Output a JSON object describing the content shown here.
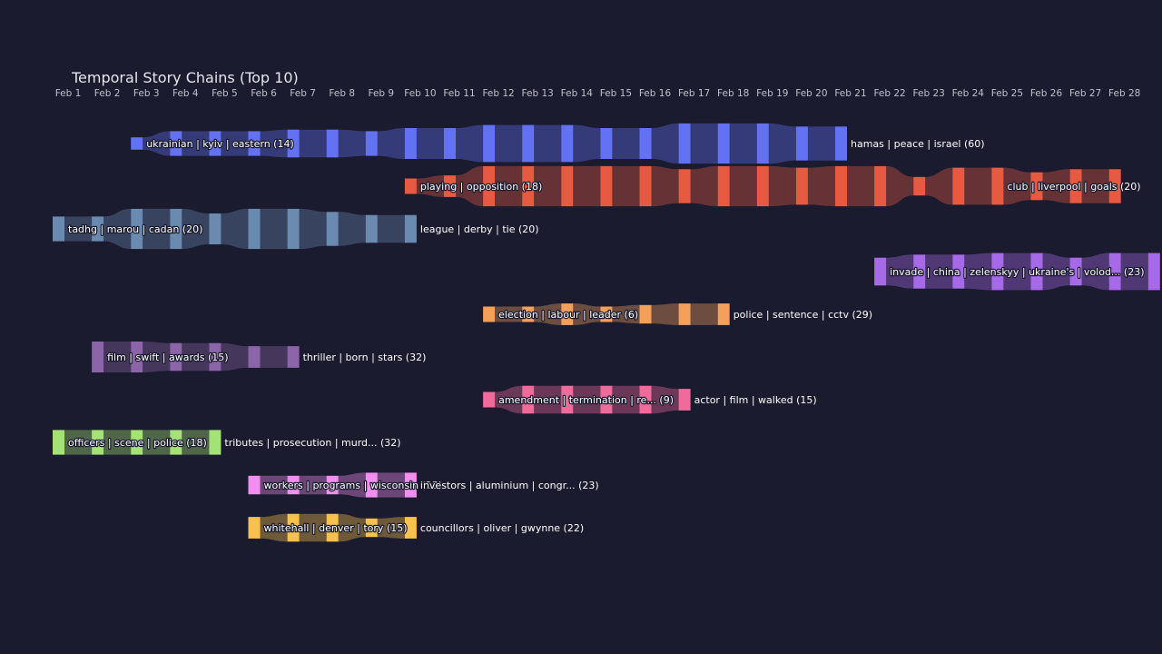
{
  "chart_data": {
    "type": "sankey-timeline",
    "title": "Temporal Story Chains (Top 10)",
    "x_ticks": [
      "Feb 1",
      "Feb 2",
      "Feb 3",
      "Feb 4",
      "Feb 5",
      "Feb 6",
      "Feb 7",
      "Feb 8",
      "Feb 9",
      "Feb 10",
      "Feb 11",
      "Feb 12",
      "Feb 13",
      "Feb 14",
      "Feb 15",
      "Feb 16",
      "Feb 17",
      "Feb 18",
      "Feb 19",
      "Feb 20",
      "Feb 21",
      "Feb 22",
      "Feb 23",
      "Feb 24",
      "Feb 25",
      "Feb 26",
      "Feb 27",
      "Feb 28"
    ],
    "legend": "none",
    "grid": false,
    "chains": [
      {
        "color": "#6272f2",
        "nodes": [
          [
            3,
            4
          ],
          [
            4,
            8
          ],
          [
            5,
            8
          ],
          [
            6,
            8
          ],
          [
            7,
            9
          ],
          [
            8,
            9
          ],
          [
            9,
            8
          ],
          [
            10,
            10
          ],
          [
            11,
            10
          ],
          [
            12,
            12
          ],
          [
            13,
            12
          ],
          [
            14,
            12
          ],
          [
            15,
            10
          ],
          [
            16,
            10
          ],
          [
            17,
            13
          ],
          [
            18,
            13
          ],
          [
            19,
            13
          ],
          [
            20,
            11
          ],
          [
            21,
            11
          ]
        ],
        "labels": [
          {
            "day": 3,
            "text": "ukrainian | kyiv | eastern (14)"
          },
          {
            "day": 21,
            "text": "hamas | peace | israel (60)"
          }
        ]
      },
      {
        "color": "#e65a42",
        "nodes": [
          [
            10,
            5
          ],
          [
            11,
            7
          ],
          [
            12,
            13
          ],
          [
            13,
            13
          ],
          [
            14,
            13
          ],
          [
            15,
            13
          ],
          [
            16,
            13
          ],
          [
            17,
            11
          ],
          [
            18,
            13
          ],
          [
            19,
            13
          ],
          [
            20,
            12
          ],
          [
            21,
            13
          ],
          [
            22,
            13
          ],
          [
            23,
            6
          ],
          [
            24,
            12
          ],
          [
            25,
            12
          ],
          [
            26,
            9
          ],
          [
            27,
            11
          ],
          [
            28,
            11
          ]
        ],
        "labels": [
          {
            "day": 10,
            "text": "playing | opposition (18)"
          },
          {
            "day": 25,
            "text": "club | liverpool | goals (20)"
          }
        ]
      },
      {
        "color": "#6a8ab0",
        "nodes": [
          [
            1,
            8
          ],
          [
            2,
            8
          ],
          [
            3,
            13
          ],
          [
            4,
            13
          ],
          [
            5,
            10
          ],
          [
            6,
            13
          ],
          [
            7,
            13
          ],
          [
            8,
            11
          ],
          [
            9,
            9
          ],
          [
            10,
            9
          ]
        ],
        "labels": [
          {
            "day": 1,
            "text": "tadhg | marou | cadan (20)"
          },
          {
            "day": 10,
            "text": "league | derby | tie (20)"
          }
        ]
      },
      {
        "color": "#a66ae8",
        "nodes": [
          [
            22,
            9
          ],
          [
            23,
            11
          ],
          [
            24,
            11
          ],
          [
            25,
            12
          ],
          [
            26,
            12
          ],
          [
            27,
            9
          ],
          [
            28,
            12
          ],
          [
            29,
            12
          ]
        ],
        "labels": [
          {
            "day": 22,
            "text": "invade | china | zelenskyy | ukraine's | volod... (23)"
          }
        ]
      },
      {
        "color": "#f3a05b",
        "nodes": [
          [
            12,
            5
          ],
          [
            13,
            5
          ],
          [
            14,
            7
          ],
          [
            15,
            5
          ],
          [
            16,
            6
          ],
          [
            17,
            7
          ],
          [
            18,
            7
          ]
        ],
        "labels": [
          {
            "day": 12,
            "text": "election | labour | leader (6)"
          },
          {
            "day": 18,
            "text": "police | sentence | cctv (29)"
          }
        ]
      },
      {
        "color": "#8c64a8",
        "nodes": [
          [
            2,
            10
          ],
          [
            3,
            10
          ],
          [
            4,
            9
          ],
          [
            5,
            9
          ],
          [
            6,
            7
          ],
          [
            7,
            7
          ]
        ],
        "labels": [
          {
            "day": 2,
            "text": "film | swift | awards (15)"
          },
          {
            "day": 7,
            "text": "thriller | born | stars (32)"
          }
        ]
      },
      {
        "color": "#ee6b9a",
        "nodes": [
          [
            12,
            5
          ],
          [
            13,
            9
          ],
          [
            14,
            9
          ],
          [
            15,
            9
          ],
          [
            16,
            9
          ],
          [
            17,
            7
          ]
        ],
        "labels": [
          {
            "day": 12,
            "text": "amendment | termination | re... (9)"
          },
          {
            "day": 17,
            "text": "actor | film | walked (15)"
          }
        ]
      },
      {
        "color": "#a5e276",
        "nodes": [
          [
            1,
            8
          ],
          [
            2,
            8
          ],
          [
            3,
            8
          ],
          [
            4,
            8
          ],
          [
            5,
            8
          ]
        ],
        "labels": [
          {
            "day": 1,
            "text": "officers | scene | police (18)"
          },
          {
            "day": 5,
            "text": "tributes | prosecution | murd... (32)"
          }
        ]
      },
      {
        "color": "#f28ef0",
        "nodes": [
          [
            6,
            6
          ],
          [
            7,
            6
          ],
          [
            8,
            6
          ],
          [
            9,
            8
          ],
          [
            10,
            8
          ]
        ],
        "labels": [
          {
            "day": 6,
            "text": "workers | programs | wisconsin (23)"
          },
          {
            "day": 10,
            "text": "investors | aluminium | congr... (23)"
          }
        ]
      },
      {
        "color": "#f7c14d",
        "nodes": [
          [
            6,
            7
          ],
          [
            7,
            9
          ],
          [
            8,
            9
          ],
          [
            9,
            6
          ],
          [
            10,
            7
          ]
        ],
        "labels": [
          {
            "day": 6,
            "text": "whitehall | denver | tory (15)"
          },
          {
            "day": 10,
            "text": "councillors | oliver | gwynne (22)"
          }
        ]
      }
    ]
  }
}
